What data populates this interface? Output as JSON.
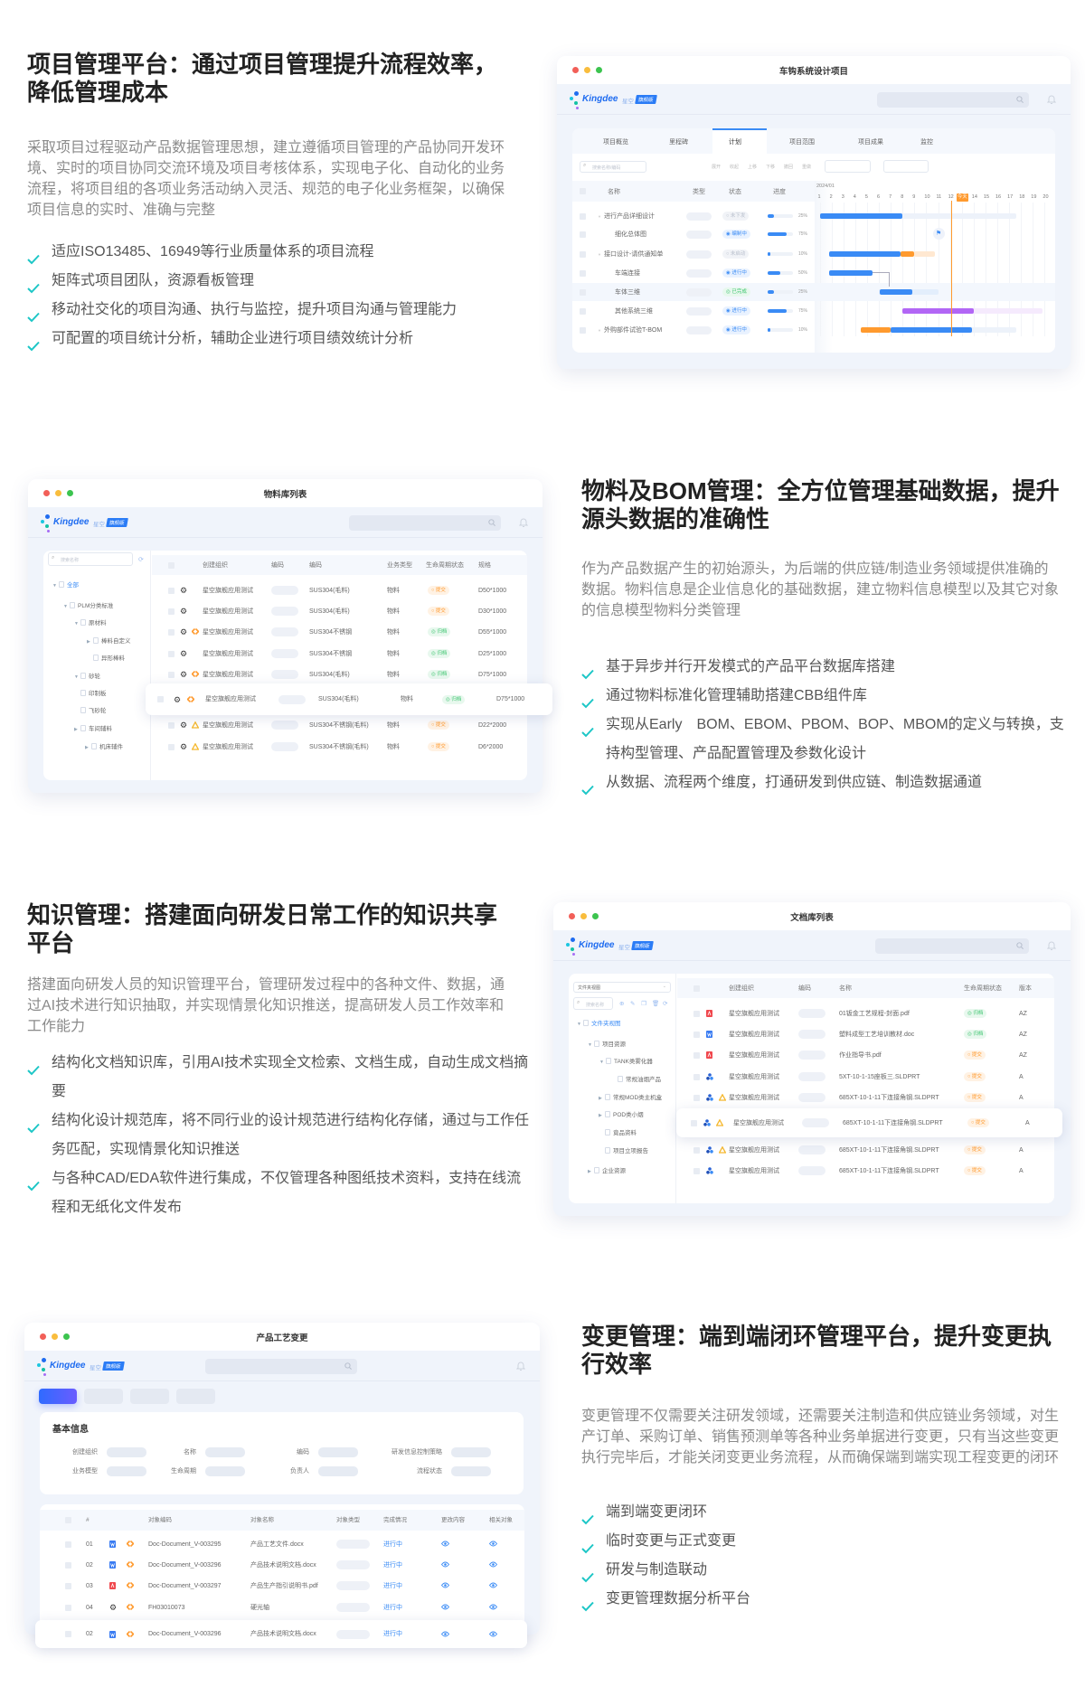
{
  "colors": {
    "accent": "#1cc6c6",
    "title": "#222222",
    "brand": "#1f6cf0",
    "orange": "#ff9a2e",
    "green": "#3cc46e",
    "blue": "#3a8bf5",
    "purple": "#b266f5"
  },
  "logo": {
    "brand": "Kingdee",
    "product": "星空",
    "edition": "旗舰版"
  },
  "sections": [
    {
      "title_lines": [
        "项目管理平台：通过项目管理提升流程效率，",
        "降低管理成本"
      ],
      "paragraph": "采取项目过程驱动产品数据管理思想，建立遵循项目管理的产品协同开发环境、实时的项目协同交流环境及项目考核体系，实现电子化、自动化的业务流程，将项目组的各项业务活动纳入灵活、规范的电子化业务框架，以确保项目信息的实时、准确与完整",
      "bullets": [
        "适应ISO13485、16949等行业质量体系的项目流程",
        "矩阵式项目团队，资源看板管理",
        "移动社交化的项目沟通、执行与监控，提升项目沟通与管理能力",
        "可配置的项目统计分析，辅助企业进行项目绩效统计分析"
      ]
    },
    {
      "title_lines": [
        "物料及BOM管理：全方位管理基础数据，提升",
        "源头数据的准确性"
      ],
      "paragraph": "作为产品数据产生的初始源头，为后端的供应链/制造业务领域提供准确的数据。物料信息是企业信息化的基础数据，建立物料信息模型以及其它对象的信息模型物料分类管理",
      "bullets": [
        "基于异步并行开发模式的产品平台数据库搭建",
        "通过物料标准化管理辅助搭建CBB组件库",
        "实现从Early　BOM、EBOM、PBOM、BOP、MBOM的定义与转换，支持构型管理、产品配置管理及参数化设计",
        "从数据、流程两个维度，打通研发到供应链、制造数据通道"
      ]
    },
    {
      "title_lines": [
        "知识管理：搭建面向研发日常工作的知识共享",
        "平台"
      ],
      "paragraph": "搭建面向研发人员的知识管理平台，管理研发过程中的各种文件、数据，通过AI技术进行知识抽取，并实现情景化知识推送，提高研发人员工作效率和工作能力",
      "bullets": [
        "结构化文档知识库，引用AI技术实现全文检索、文档生成，自动生成文档摘要",
        "结构化设计规范库，将不同行业的设计规范进行结构化存储，通过与工作任务匹配，实现情景化知识推送",
        "与各种CAD/EDA软件进行集成，不仅管理各种图纸技术资料，支持在线流程和无纸化文件发布"
      ]
    },
    {
      "title_lines": [
        "变更管理：端到端闭环管理平台，提升变更执",
        "行效率"
      ],
      "paragraph": "变更管理不仅需要关注研发领域，还需要关注制造和供应链业务领域，对生产订单、采购订单、销售预测单等各种业务单据进行变更，只有当这些变更执行完毕后，才能关闭变更业务流程，从而确保端到端实现工程变更的闭环",
      "bullets": [
        "端到端变更闭环",
        "临时变更与正式变更",
        "研发与制造联动",
        "变更管理数据分析平台"
      ]
    }
  ],
  "project": {
    "window_title": "车钩系统设计项目",
    "tabs": [
      "项目概览",
      "里程碑",
      "计划",
      "项目范围",
      "项目成果",
      "监控"
    ],
    "active_tab": "计划",
    "search_placeholder": "搜索名称/编码",
    "toolbar": [
      "展开",
      "收起",
      "上移",
      "下移",
      "撤回",
      "重做"
    ],
    "columns": [
      "名称",
      "类型",
      "状态",
      "进度"
    ],
    "month": "2024/01",
    "days": [
      "1",
      "2",
      "3",
      "4",
      "5",
      "6",
      "7",
      "8",
      "9",
      "10",
      "11",
      "12",
      "今天",
      "14",
      "15",
      "16",
      "17",
      "18",
      "19",
      "20"
    ],
    "today_day": 12.1,
    "rows": [
      {
        "name": "进行产品详细设计",
        "parent": true,
        "status": "未下发",
        "status_type": "gray",
        "progress": 25,
        "bars": [
          {
            "from": 1,
            "to": 17.6,
            "color": "#edf2fa"
          },
          {
            "from": 1,
            "to": 8,
            "color": "#3a8bf5"
          }
        ]
      },
      {
        "name": "细化总体图",
        "parent": false,
        "status": "编制中",
        "status_type": "blue",
        "progress": 75,
        "milestone": 11
      },
      {
        "name": "接口设计-请供通知单",
        "parent": true,
        "status": "未启动",
        "status_type": "gray",
        "progress": 10,
        "bars": [
          {
            "from": 9,
            "to": 10.7,
            "color": "#ffe8d1"
          },
          {
            "from": 1.8,
            "to": 7.8,
            "color": "#3a8bf5"
          },
          {
            "from": 7.8,
            "to": 9,
            "color": "#ff9a2e"
          }
        ]
      },
      {
        "name": "车端连接",
        "parent": false,
        "status": "进行中",
        "status_type": "blue",
        "progress": 50,
        "bars": [
          {
            "from": 1.8,
            "to": 5.5,
            "color": "#3a8bf5"
          }
        ]
      },
      {
        "name": "车体三维",
        "parent": false,
        "status": "已完成",
        "status_type": "green",
        "progress": 25,
        "selected": true,
        "bars": [
          {
            "from": 6,
            "to": 11,
            "color": "#e3eefc"
          },
          {
            "from": 6.1,
            "to": 8.8,
            "color": "#3a8bf5"
          }
        ]
      },
      {
        "name": "其他系统三维",
        "parent": false,
        "status": "进行中",
        "status_type": "blue",
        "progress": 75,
        "bars": [
          {
            "from": 8,
            "to": 19.8,
            "color": "#f5eafd"
          },
          {
            "from": 8,
            "to": 14,
            "color": "#b266f5"
          }
        ]
      },
      {
        "name": "外购部件试验T-BOM",
        "parent": true,
        "status": "进行中",
        "status_type": "blue",
        "progress": 10,
        "bars": [
          {
            "from": 4.5,
            "to": 17.6,
            "color": "#edf2fa"
          },
          {
            "from": 4.5,
            "to": 7,
            "color": "#ff9a2e"
          },
          {
            "from": 7,
            "to": 13.9,
            "color": "#3a8bf5"
          }
        ]
      }
    ]
  },
  "material": {
    "window_title": "物料库列表",
    "search_placeholder": "搜索名称",
    "tree": [
      {
        "label": "全部",
        "level": 0,
        "caret": "down",
        "active": true
      },
      {
        "label": "PLM分类标准",
        "level": 1,
        "caret": "down"
      },
      {
        "label": "原材料",
        "level": 2,
        "caret": "down"
      },
      {
        "label": "棒料自定义",
        "level": 3,
        "caret": "right"
      },
      {
        "label": "异形棒料",
        "level": 3,
        "caret": ""
      },
      {
        "label": "砂轮",
        "level": 2,
        "caret": "down"
      },
      {
        "label": "印制板",
        "level": 2,
        "caret": ""
      },
      {
        "label": "飞砂轮",
        "level": 2,
        "caret": ""
      },
      {
        "label": "车间辅料",
        "level": 2,
        "caret": "right"
      },
      {
        "label": "机床辅件",
        "level": 3,
        "caret": "right"
      }
    ],
    "columns": [
      "创建组织",
      "编码",
      "编码",
      "业务类型",
      "生命周期状态",
      "规格"
    ],
    "rows": [
      {
        "org": "星空旗舰应用测试",
        "code": "SUS304(毛料)",
        "type": "物料",
        "status": "提交",
        "status_type": "orange",
        "spec": "D50*1000",
        "extra": ""
      },
      {
        "org": "星空旗舰应用测试",
        "code": "SUS304(毛料)",
        "type": "物料",
        "status": "提交",
        "status_type": "orange",
        "spec": "D30*1000",
        "extra": ""
      },
      {
        "org": "星空旗舰应用测试",
        "code": "SUS304不锈钢",
        "type": "物料",
        "status": "归档",
        "status_type": "green",
        "spec": "D55*1000",
        "extra": "link"
      },
      {
        "org": "星空旗舰应用测试",
        "code": "SUS304不锈钢",
        "type": "物料",
        "status": "归档",
        "status_type": "green",
        "spec": "D25*1000",
        "extra": ""
      },
      {
        "org": "星空旗舰应用测试",
        "code": "SUS304(毛料)",
        "type": "物料",
        "status": "归档",
        "status_type": "green",
        "spec": "D75*1000",
        "extra": "link"
      },
      {
        "org": "星空旗舰应用测试",
        "code": "SUS304(毛料)",
        "type": "物料",
        "status": "归档",
        "status_type": "green",
        "spec": "D75*1000",
        "extra": "link",
        "highlight": true
      },
      {
        "org": "星空旗舰应用测试",
        "code": "SUS304不锈钢(毛料)",
        "type": "物料",
        "status": "提交",
        "status_type": "orange",
        "spec": "D22*2000",
        "extra": "recycle"
      },
      {
        "org": "星空旗舰应用测试",
        "code": "SUS304不锈钢(毛料)",
        "type": "物料",
        "status": "提交",
        "status_type": "orange",
        "spec": "D6*2000",
        "extra": "recycle"
      }
    ]
  },
  "documents": {
    "window_title": "文档库列表",
    "view_select": "文件夹视图",
    "search_placeholder": "搜索名称",
    "tree": [
      {
        "label": "文件夹视图",
        "level": 0,
        "caret": "down",
        "active": true
      },
      {
        "label": "项目资源",
        "level": 1,
        "caret": "down"
      },
      {
        "label": "TANK类雾化器",
        "level": 2,
        "caret": "down"
      },
      {
        "label": "常规油烟产品",
        "level": 3,
        "caret": ""
      },
      {
        "label": "常规MOD类主机盒",
        "level": 2,
        "caret": "right"
      },
      {
        "label": "POD类小烟",
        "level": 2,
        "caret": "right"
      },
      {
        "label": "竟品资料",
        "level": 2,
        "caret": ""
      },
      {
        "label": "项目立项报告",
        "level": 2,
        "caret": ""
      },
      {
        "label": "企业资源",
        "level": 1,
        "caret": "right"
      }
    ],
    "columns": [
      "创建组织",
      "编码",
      "名称",
      "生命周期状态",
      "版本"
    ],
    "rows": [
      {
        "file_icon": "pdf",
        "extra": "",
        "org": "星空旗舰应用测试",
        "name": "01钣金工艺规程-封面.pdf",
        "status": "归档",
        "status_type": "green",
        "version": "AZ"
      },
      {
        "file_icon": "word",
        "extra": "",
        "org": "星空旗舰应用测试",
        "name": "塑料成型工艺培训教材.doc",
        "status": "归档",
        "status_type": "green",
        "version": "AZ"
      },
      {
        "file_icon": "pdf",
        "extra": "",
        "org": "星空旗舰应用测试",
        "name": "作业指导书.pdf",
        "status": "提交",
        "status_type": "orange",
        "version": "AZ"
      },
      {
        "file_icon": "cad",
        "extra": "",
        "org": "星空旗舰应用测试",
        "name": "5XT-10-1-15座板三.SLDPRT",
        "status": "提交",
        "status_type": "orange",
        "version": "A"
      },
      {
        "file_icon": "cad",
        "extra": "recycle",
        "org": "星空旗舰应用测试",
        "name": "685XT-10-1-11下连接角钢.SLDPRT",
        "status": "提交",
        "status_type": "orange",
        "version": "A"
      },
      {
        "file_icon": "cad",
        "extra": "recycle",
        "org": "星空旗舰应用测试",
        "name": "685XT-10-1-11下连接角钢.SLDPRT",
        "status": "提交",
        "status_type": "orange",
        "version": "A",
        "highlight": true
      },
      {
        "file_icon": "cad",
        "extra": "recycle",
        "org": "星空旗舰应用测试",
        "name": "685XT-10-1-11下连接角钢.SLDPRT",
        "status": "提交",
        "status_type": "orange",
        "version": "A"
      },
      {
        "file_icon": "cad",
        "extra": "",
        "org": "星空旗舰应用测试",
        "name": "685XT-10-1-11下连接角钢.SLDPRT",
        "status": "提交",
        "status_type": "orange",
        "version": "A"
      }
    ]
  },
  "change": {
    "window_title": "产品工艺变更",
    "info_title": "基本信息",
    "fields": [
      [
        "创建组织",
        "名称",
        "编码",
        "研发信息控制策略"
      ],
      [
        "业务模型",
        "生命周期",
        "负责人",
        "流程状态"
      ]
    ],
    "columns": [
      "#",
      "对象编码",
      "对象名称",
      "对象类型",
      "完成情况",
      "更改内容",
      "相关对象"
    ],
    "rows": [
      {
        "no": "01",
        "file_icon": "word",
        "code": "Doc-Document_V-003295",
        "name": "产品工艺文件.docx",
        "progress": "进行中"
      },
      {
        "no": "02",
        "file_icon": "word",
        "code": "Doc-Document_V-003296",
        "name": "产品技术说明文档.docx",
        "progress": "进行中"
      },
      {
        "no": "03",
        "file_icon": "pdf",
        "code": "Doc-Document_V-003297",
        "name": "产品生产指引说明书.pdf",
        "progress": "进行中"
      },
      {
        "no": "04",
        "file_icon": "gear",
        "code": "FH03010073",
        "name": "硬光轴",
        "progress": "进行中"
      },
      {
        "no": "02",
        "file_icon": "word",
        "code": "Doc-Document_V-003296",
        "name": "产品技术说明文档.docx",
        "progress": "进行中",
        "highlight": true
      }
    ]
  }
}
